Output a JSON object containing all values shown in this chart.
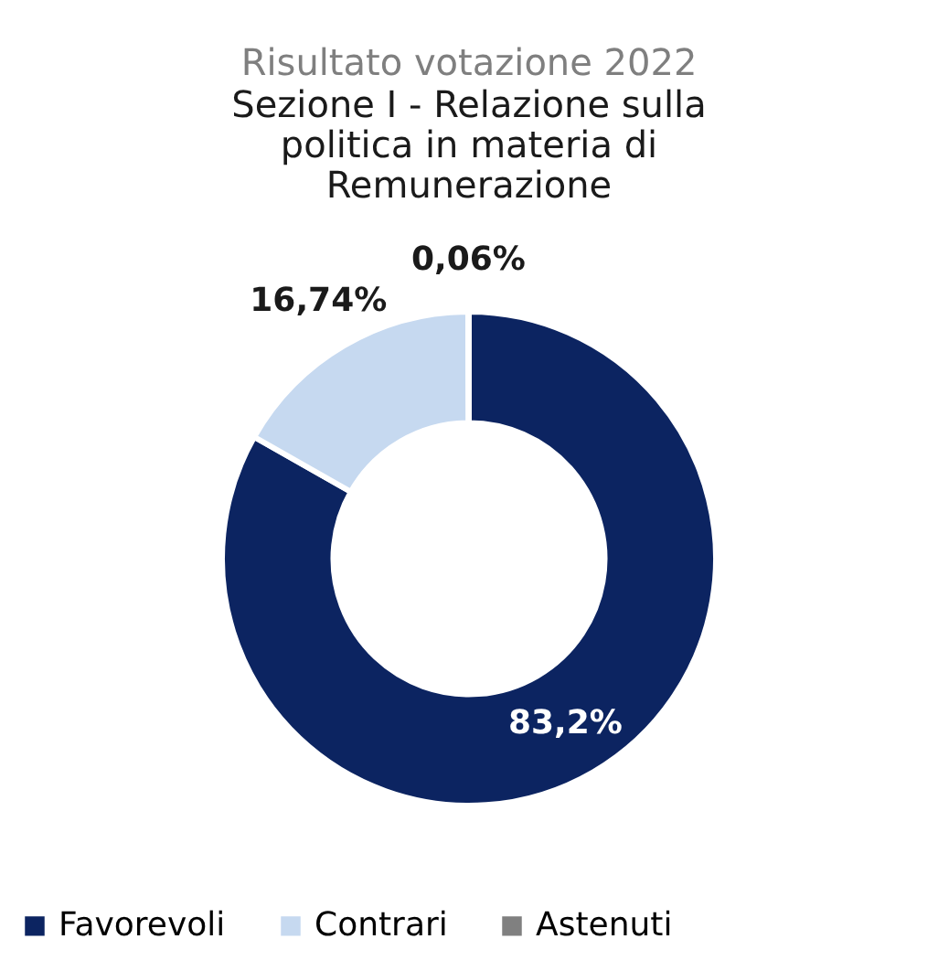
{
  "chart_data": {
    "type": "donut",
    "title": "Risultato votazione 2022",
    "subtitle": "Sezione I - Relazione sulla politica in materia di Remunerazione",
    "categories": [
      "Favorevoli",
      "Contrari",
      "Astenuti"
    ],
    "values": [
      83.2,
      16.74,
      0.06
    ],
    "colors": [
      "#0c2461",
      "#c6d9f0",
      "#808080"
    ],
    "value_labels": [
      "83,2%",
      "16,74%",
      "0,06%"
    ],
    "legend": "bottom"
  }
}
